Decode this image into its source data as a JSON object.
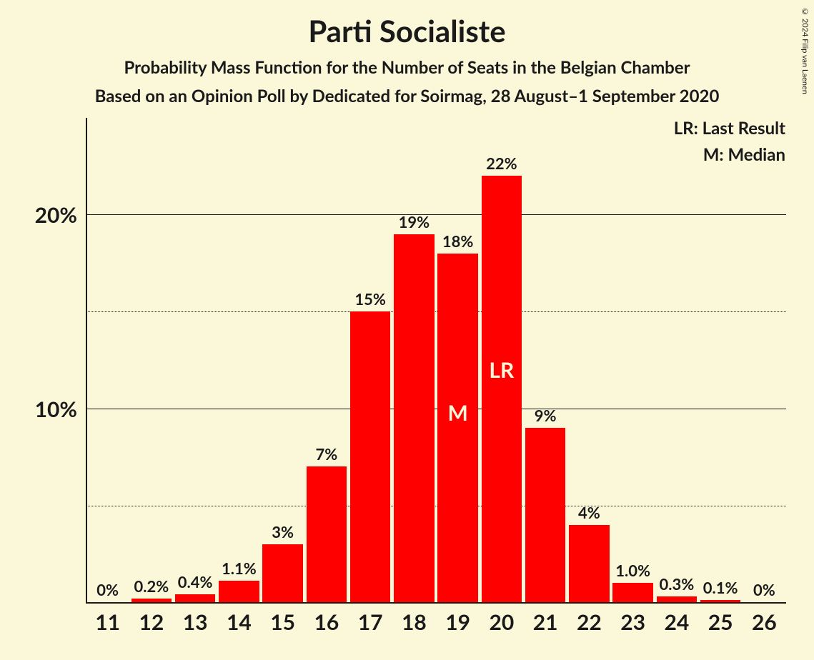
{
  "title": "Parti Socialiste",
  "subtitle1": "Probability Mass Function for the Number of Seats in the Belgian Chamber",
  "subtitle2": "Based on an Opinion Poll by Dedicated for Soirmag, 28 August–1 September 2020",
  "copyright": "© 2024 Filip van Laenen",
  "legend": {
    "lr": "LR: Last Result",
    "m": "M: Median"
  },
  "chart": {
    "type": "bar",
    "background_color": "#fbf8d9",
    "bar_color": "#ff0000",
    "axis_color": "#1a1a1a",
    "gridline_major_color": "#1a1a1a",
    "gridline_minor_style": "dotted",
    "text_color": "#1a1a1a",
    "annotation_text_color": "#fbf8d9",
    "title_fontsize": 42,
    "subtitle_fontsize": 24,
    "axis_label_fontsize": 30,
    "bar_label_fontsize": 22,
    "annotation_fontsize": 30,
    "bar_width_ratio": 0.92,
    "y_axis": {
      "max": 25,
      "major_ticks": [
        10,
        20
      ],
      "minor_ticks": [
        5,
        15
      ],
      "tick_labels": {
        "10": "10%",
        "20": "20%"
      }
    },
    "x_categories": [
      "11",
      "12",
      "13",
      "14",
      "15",
      "16",
      "17",
      "18",
      "19",
      "20",
      "21",
      "22",
      "23",
      "24",
      "25",
      "26"
    ],
    "bars": [
      {
        "x": "11",
        "value": 0,
        "label": "0%"
      },
      {
        "x": "12",
        "value": 0.2,
        "label": "0.2%"
      },
      {
        "x": "13",
        "value": 0.4,
        "label": "0.4%"
      },
      {
        "x": "14",
        "value": 1.1,
        "label": "1.1%"
      },
      {
        "x": "15",
        "value": 3,
        "label": "3%"
      },
      {
        "x": "16",
        "value": 7,
        "label": "7%"
      },
      {
        "x": "17",
        "value": 15,
        "label": "15%"
      },
      {
        "x": "18",
        "value": 19,
        "label": "19%"
      },
      {
        "x": "19",
        "value": 18,
        "label": "18%",
        "annotation": "M"
      },
      {
        "x": "20",
        "value": 22,
        "label": "22%",
        "annotation": "LR"
      },
      {
        "x": "21",
        "value": 9,
        "label": "9%"
      },
      {
        "x": "22",
        "value": 4,
        "label": "4%"
      },
      {
        "x": "23",
        "value": 1.0,
        "label": "1.0%"
      },
      {
        "x": "24",
        "value": 0.3,
        "label": "0.3%"
      },
      {
        "x": "25",
        "value": 0.1,
        "label": "0.1%"
      },
      {
        "x": "26",
        "value": 0,
        "label": "0%"
      }
    ]
  }
}
